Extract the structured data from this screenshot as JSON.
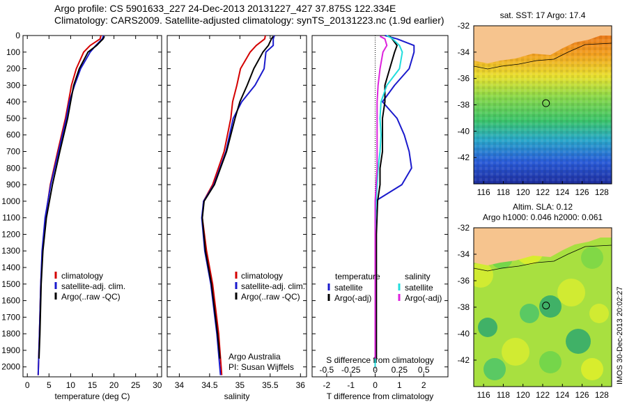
{
  "header": {
    "line1": "Argo profile: CS 5901633_227 24-Dec-2013 20131227_427 37.875S 122.334E",
    "line2": "Climatology: CARS2009. Satellite-adjusted climatology: synTS_20131223.nc (1.9d earlier)"
  },
  "colors": {
    "climatology": "#d40000",
    "satellite": "#1a1acc",
    "argo": "#000000",
    "salinity_sat": "#22dddd",
    "salinity_argo": "#dd22dd",
    "land": "#f6c48e"
  },
  "chart_data": [
    {
      "type": "line",
      "name": "temperature-profile",
      "xlabel": "temperature (deg C)",
      "xlim": [
        -1,
        31
      ],
      "xticks": [
        "0",
        "5",
        "10",
        "15",
        "20",
        "25",
        "30"
      ],
      "ylim": [
        0,
        2060
      ],
      "yticks": [
        "0",
        "100",
        "200",
        "300",
        "400",
        "500",
        "600",
        "700",
        "800",
        "900",
        "1000",
        "1100",
        "1200",
        "1300",
        "1400",
        "1500",
        "1600",
        "1700",
        "1800",
        "1900",
        "2000"
      ],
      "legend": [
        "climatology",
        "satellite-adj. clim.",
        "Argo(..raw -QC)"
      ],
      "series": [
        {
          "name": "climatology",
          "depth": [
            0,
            20,
            60,
            100,
            200,
            300,
            400,
            500,
            700,
            900,
            1100,
            1300,
            1500,
            1800,
            2050
          ],
          "values": [
            17.0,
            16.8,
            14.5,
            13.0,
            11.3,
            10.2,
            9.5,
            8.8,
            7.0,
            5.3,
            4.2,
            3.5,
            3.1,
            2.8,
            2.5
          ]
        },
        {
          "name": "satellite-adj. clim.",
          "depth": [
            0,
            20,
            60,
            100,
            200,
            300,
            400,
            500,
            700,
            900,
            1100,
            1300,
            1500,
            1800,
            2050
          ],
          "values": [
            17.6,
            17.3,
            15.8,
            14.5,
            12.3,
            10.9,
            9.7,
            9.0,
            7.2,
            5.4,
            4.1,
            3.4,
            3.1,
            2.8,
            2.5
          ]
        },
        {
          "name": "Argo(..raw -QC)",
          "depth": [
            5,
            20,
            60,
            100,
            200,
            300,
            400,
            500,
            700,
            900,
            1100,
            1300,
            1500,
            1800,
            1950
          ],
          "values": [
            17.8,
            17.5,
            16.0,
            14.0,
            12.0,
            10.7,
            10.0,
            9.3,
            7.5,
            5.8,
            4.4,
            3.6,
            3.2,
            2.9,
            2.7
          ]
        }
      ]
    },
    {
      "type": "line",
      "name": "salinity-profile",
      "xlabel": "salinity",
      "xlim": [
        33.8,
        36.1
      ],
      "xticks": [
        "34",
        "34.5",
        "35",
        "35.5",
        "36"
      ],
      "ylim": [
        0,
        2060
      ],
      "legend": [
        "climatology",
        "satellite-adj. clim.",
        "Argo(..raw -QC)"
      ],
      "note": [
        "Argo Australia",
        "PI: Susan Wijffels"
      ],
      "series": [
        {
          "name": "climatology",
          "depth": [
            0,
            20,
            60,
            100,
            200,
            300,
            400,
            500,
            700,
            900,
            1000,
            1100,
            1300,
            1500,
            1800,
            2050
          ],
          "values": [
            35.42,
            35.41,
            35.27,
            35.17,
            35.01,
            34.95,
            34.88,
            34.85,
            34.74,
            34.55,
            34.4,
            34.38,
            34.45,
            34.55,
            34.65,
            34.7
          ]
        },
        {
          "name": "satellite-adj. clim.",
          "depth": [
            0,
            20,
            60,
            100,
            200,
            300,
            400,
            500,
            700,
            900,
            1000,
            1100,
            1300,
            1500,
            1800,
            2050
          ],
          "values": [
            35.57,
            35.55,
            35.55,
            35.43,
            35.4,
            35.25,
            35.03,
            34.89,
            34.77,
            34.57,
            34.4,
            34.37,
            34.42,
            34.52,
            34.62,
            34.68
          ]
        },
        {
          "name": "Argo(..raw -QC)",
          "depth": [
            5,
            20,
            60,
            100,
            200,
            300,
            400,
            500,
            700,
            900,
            1000,
            1100,
            1300,
            1500,
            1800,
            1950
          ],
          "values": [
            35.55,
            35.52,
            35.47,
            35.38,
            35.23,
            35.12,
            35.0,
            34.92,
            34.78,
            34.58,
            34.41,
            34.38,
            34.43,
            34.53,
            34.63,
            34.67
          ]
        }
      ]
    },
    {
      "type": "line",
      "name": "difference-profile",
      "xlabel": "T difference from climatology",
      "xlim": [
        -2.6,
        3.0
      ],
      "xticks": [
        "-2",
        "-1",
        "0",
        "1",
        "2"
      ],
      "top_label": "S difference from climatology",
      "top_ticks": [
        "-0.5",
        "-0.25",
        "0",
        "0.25",
        "0.5"
      ],
      "ylim": [
        0,
        2060
      ],
      "legend_left_title": "temperature",
      "legend_right_title": "salinity",
      "legend": [
        "satellite",
        "Argo(-adj)",
        "satellite",
        "Argo(-adj)"
      ],
      "series": [
        {
          "name": "temperature satellite",
          "depth": [
            0,
            20,
            60,
            100,
            200,
            300,
            400,
            500,
            600,
            700,
            800,
            900,
            1000,
            1200,
            1500,
            1800,
            2000
          ],
          "values": [
            0.4,
            0.9,
            1.6,
            1.6,
            1.4,
            0.8,
            0.3,
            0.9,
            1.2,
            1.4,
            1.5,
            1.1,
            0.0,
            0.0,
            0.0,
            0.0,
            0.0
          ]
        },
        {
          "name": "temperature Argo(-adj)",
          "depth": [
            5,
            20,
            60,
            100,
            200,
            300,
            400,
            500,
            600,
            700,
            800,
            900,
            1000,
            1200,
            1500,
            1800,
            1950
          ],
          "values": [
            0.6,
            0.7,
            0.9,
            0.8,
            0.6,
            0.4,
            0.4,
            0.3,
            0.3,
            0.3,
            0.2,
            0.2,
            0.1,
            0.05,
            0.05,
            0.05,
            0.05
          ]
        },
        {
          "name": "salinity satellite",
          "depth": [
            0,
            20,
            60,
            100,
            200,
            300,
            400,
            500,
            600,
            700,
            800,
            900,
            1000,
            1200,
            1500,
            1800,
            2000
          ],
          "values": [
            0.12,
            0.18,
            0.25,
            0.28,
            0.25,
            0.12,
            0.06,
            0.05,
            0.06,
            0.05,
            0.03,
            0.02,
            0.01,
            0.0,
            0.0,
            0.0,
            0.0
          ]
        },
        {
          "name": "salinity Argo(-adj)",
          "depth": [
            5,
            20,
            60,
            100,
            200,
            300,
            400,
            500,
            600,
            700,
            800,
            900,
            1000,
            1200,
            1500,
            1800,
            1950
          ],
          "values": [
            0.05,
            0.1,
            0.12,
            0.08,
            0.05,
            0.03,
            0.02,
            0.02,
            0.02,
            0.02,
            0.02,
            0.01,
            0.0,
            0.0,
            0.0,
            0.0,
            0.0
          ]
        }
      ]
    },
    {
      "type": "heatmap",
      "name": "sst-map",
      "title": "sat. SST: 17 Argo: 17.4",
      "xlim": [
        115,
        129
      ],
      "ylim": [
        -44,
        -32
      ],
      "xticks": [
        "116",
        "118",
        "120",
        "122",
        "124",
        "126",
        "128"
      ],
      "yticks": [
        "-32",
        "-34",
        "-36",
        "-38",
        "-40",
        "-42"
      ],
      "argo_position": [
        122.334,
        -37.875
      ]
    },
    {
      "type": "heatmap",
      "name": "sla-map",
      "title": "Altim. SLA: 0.12",
      "subtitle": "Argo h1000: 0.046 h2000: 0.061",
      "xlim": [
        115,
        129
      ],
      "ylim": [
        -44,
        -32
      ],
      "xticks": [
        "116",
        "118",
        "120",
        "122",
        "124",
        "126",
        "128"
      ],
      "yticks": [
        "-32",
        "-34",
        "-36",
        "-38",
        "-40",
        "-42"
      ],
      "argo_position": [
        122.334,
        -37.875
      ]
    }
  ],
  "footer": {
    "credit": "IMOS 30-Dec-2013 20:02:27"
  }
}
